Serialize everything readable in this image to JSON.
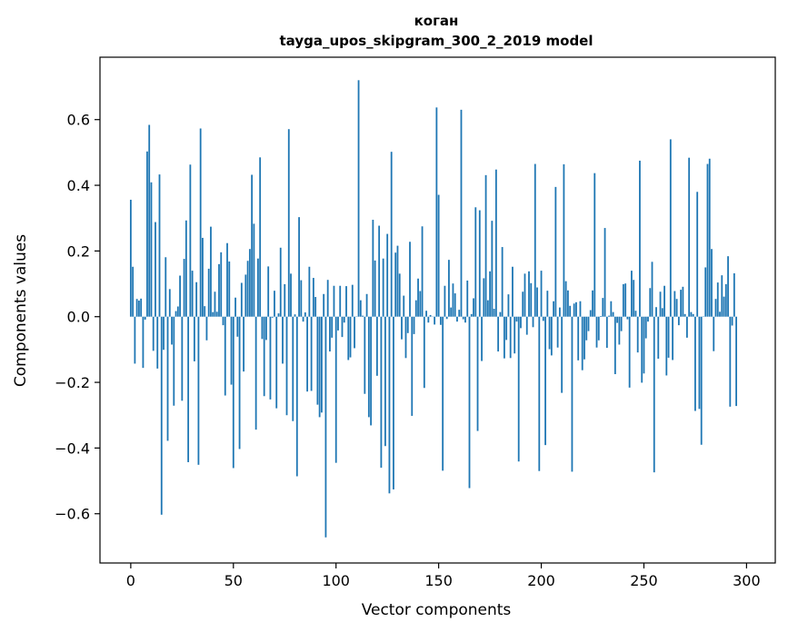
{
  "chart_data": {
    "type": "bar",
    "title": "коган",
    "subtitle": "tayga_upos_skipgram_300_2_2019 model",
    "xlabel": "Vector components",
    "ylabel": "Components values",
    "xlim": [
      -15,
      314
    ],
    "ylim": [
      -0.75,
      0.79
    ],
    "xticks": [
      0,
      50,
      100,
      150,
      200,
      250,
      300
    ],
    "yticks": [
      -0.6,
      -0.4,
      -0.2,
      0.0,
      0.2,
      0.4,
      0.6
    ],
    "ytick_labels": [
      "−0.6",
      "−0.4",
      "−0.2",
      "0.0",
      "0.2",
      "0.4",
      "0.6"
    ],
    "grid": false,
    "legend": "none",
    "bar_color": "#1f77b4",
    "values": [
      0.356,
      0.152,
      -0.143,
      0.054,
      0.049,
      0.055,
      -0.156,
      -0.009,
      0.503,
      0.584,
      0.409,
      -0.104,
      0.288,
      -0.158,
      0.433,
      -0.603,
      -0.101,
      0.181,
      -0.378,
      0.084,
      -0.085,
      -0.271,
      0.017,
      0.031,
      0.125,
      -0.256,
      0.176,
      0.293,
      -0.443,
      0.463,
      0.14,
      -0.136,
      0.105,
      -0.451,
      0.573,
      0.24,
      0.032,
      -0.072,
      0.146,
      0.274,
      0.014,
      0.076,
      0.015,
      0.16,
      0.196,
      -0.026,
      -0.24,
      0.224,
      0.168,
      -0.207,
      -0.461,
      0.058,
      -0.061,
      -0.403,
      0.103,
      -0.167,
      0.128,
      0.17,
      0.206,
      0.432,
      0.283,
      -0.344,
      0.177,
      0.485,
      -0.068,
      -0.242,
      -0.071,
      0.153,
      -0.252,
      -0.003,
      0.079,
      -0.279,
      0.01,
      0.21,
      -0.143,
      0.099,
      -0.3,
      0.571,
      0.131,
      -0.318,
      0.007,
      -0.486,
      0.303,
      0.111,
      -0.015,
      0.013,
      -0.228,
      0.152,
      -0.226,
      0.118,
      0.06,
      -0.268,
      -0.306,
      -0.292,
      0.069,
      -0.672,
      0.112,
      -0.106,
      -0.064,
      0.094,
      -0.445,
      -0.042,
      0.094,
      -0.062,
      -0.018,
      0.093,
      -0.132,
      -0.124,
      0.097,
      -0.096,
      0.001,
      0.72,
      0.05,
      0.003,
      -0.235,
      0.069,
      -0.306,
      -0.331,
      0.295,
      0.171,
      -0.18,
      0.277,
      -0.46,
      0.177,
      -0.394,
      0.252,
      -0.538,
      0.502,
      -0.526,
      0.195,
      0.216,
      0.131,
      -0.069,
      0.064,
      -0.126,
      -0.05,
      0.228,
      -0.302,
      -0.053,
      0.05,
      0.116,
      0.078,
      0.275,
      -0.217,
      0.018,
      -0.018,
      0.005,
      -0.001,
      -0.024,
      0.637,
      0.371,
      -0.025,
      -0.469,
      0.094,
      -0.007,
      0.173,
      0.028,
      0.101,
      0.071,
      -0.015,
      0.021,
      0.63,
      -0.008,
      -0.018,
      0.11,
      -0.522,
      0.008,
      0.056,
      0.333,
      -0.348,
      0.324,
      -0.135,
      0.117,
      0.431,
      0.05,
      0.138,
      0.292,
      0.024,
      0.448,
      -0.106,
      0.014,
      0.212,
      -0.127,
      -0.071,
      0.068,
      -0.126,
      0.152,
      -0.112,
      -0.015,
      -0.441,
      -0.035,
      0.076,
      0.131,
      -0.055,
      0.138,
      0.102,
      -0.032,
      0.465,
      0.089,
      -0.47,
      0.14,
      -0.013,
      -0.391,
      0.079,
      -0.099,
      -0.118,
      0.047,
      0.395,
      -0.094,
      0.028,
      -0.232,
      0.464,
      0.108,
      0.08,
      0.033,
      -0.472,
      0.04,
      0.044,
      -0.133,
      0.047,
      -0.163,
      -0.13,
      -0.072,
      -0.044,
      0.02,
      0.08,
      0.437,
      -0.094,
      -0.072,
      0.002,
      0.057,
      0.27,
      -0.095,
      0.003,
      0.047,
      0.014,
      -0.175,
      -0.019,
      -0.085,
      -0.044,
      0.099,
      0.101,
      -0.008,
      -0.216,
      0.14,
      0.112,
      0.018,
      -0.109,
      0.475,
      -0.201,
      -0.173,
      -0.066,
      -0.015,
      0.087,
      0.167,
      -0.474,
      0.029,
      -0.128,
      0.076,
      0.026,
      0.094,
      -0.179,
      -0.125,
      0.54,
      -0.132,
      0.078,
      0.054,
      -0.026,
      0.082,
      0.091,
      0.008,
      -0.064,
      0.484,
      0.014,
      0.008,
      -0.287,
      0.38,
      -0.281,
      -0.39,
      0.001,
      0.15,
      0.465,
      0.481,
      0.206,
      -0.105,
      0.054,
      0.104,
      0.015,
      0.126,
      0.061,
      0.099,
      0.184,
      -0.274,
      -0.027,
      0.132,
      -0.272
    ]
  }
}
